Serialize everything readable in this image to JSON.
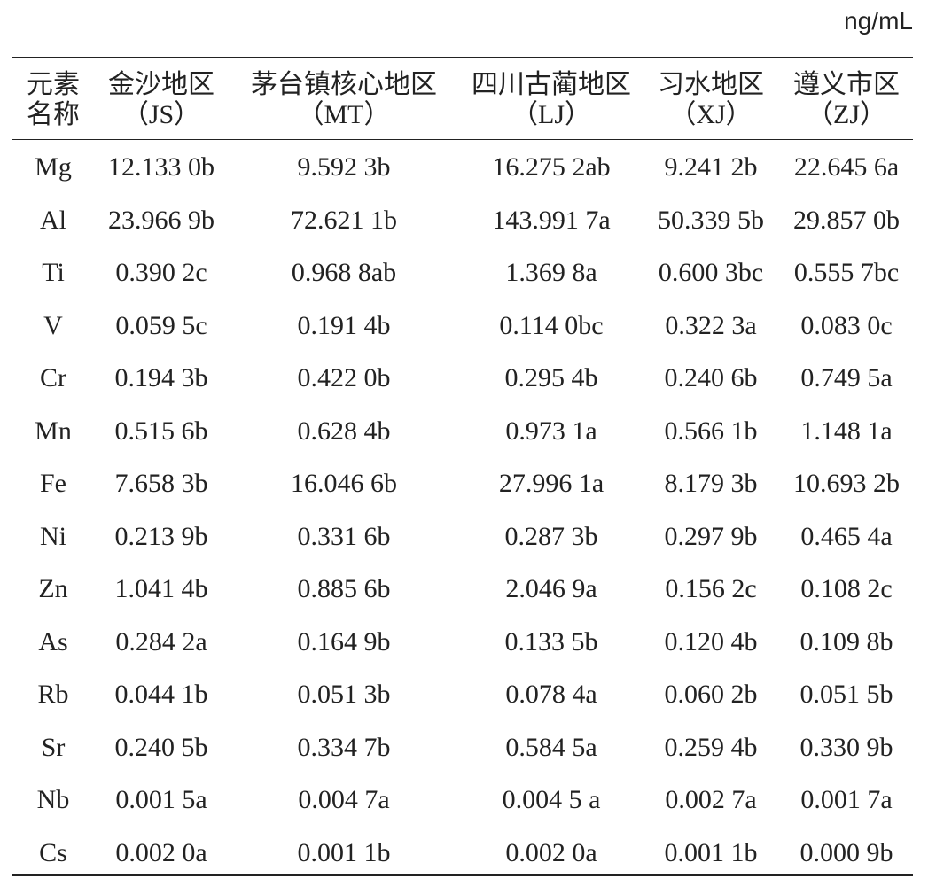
{
  "table": {
    "unit": "ng/mL",
    "header": [
      [
        "元素",
        "名称"
      ],
      [
        "金沙地区",
        "（JS）"
      ],
      [
        "茅台镇核心地区",
        "（MT）"
      ],
      [
        "四川古蔺地区",
        "（LJ）"
      ],
      [
        "习水地区",
        "（XJ）"
      ],
      [
        "遵义市区",
        "（ZJ）"
      ]
    ],
    "rows": [
      [
        "Mg",
        "12.133 0b",
        "9.592 3b",
        "16.275 2ab",
        "9.241 2b",
        "22.645 6a"
      ],
      [
        "Al",
        "23.966 9b",
        "72.621 1b",
        "143.991 7a",
        "50.339 5b",
        "29.857 0b"
      ],
      [
        "Ti",
        "0.390 2c",
        "0.968 8ab",
        "1.369 8a",
        "0.600 3bc",
        "0.555 7bc"
      ],
      [
        "V",
        "0.059 5c",
        "0.191 4b",
        "0.114 0bc",
        "0.322 3a",
        "0.083 0c"
      ],
      [
        "Cr",
        "0.194 3b",
        "0.422 0b",
        "0.295 4b",
        "0.240 6b",
        "0.749 5a"
      ],
      [
        "Mn",
        "0.515 6b",
        "0.628 4b",
        "0.973 1a",
        "0.566 1b",
        "1.148 1a"
      ],
      [
        "Fe",
        "7.658 3b",
        "16.046 6b",
        "27.996 1a",
        "8.179 3b",
        "10.693 2b"
      ],
      [
        "Ni",
        "0.213 9b",
        "0.331 6b",
        "0.287 3b",
        "0.297 9b",
        "0.465 4a"
      ],
      [
        "Zn",
        "1.041 4b",
        "0.885 6b",
        "2.046 9a",
        "0.156 2c",
        "0.108 2c"
      ],
      [
        "As",
        "0.284 2a",
        "0.164 9b",
        "0.133 5b",
        "0.120 4b",
        "0.109 8b"
      ],
      [
        "Rb",
        "0.044 1b",
        "0.051 3b",
        "0.078 4a",
        "0.060 2b",
        "0.051 5b"
      ],
      [
        "Sr",
        "0.240 5b",
        "0.334 7b",
        "0.584 5a",
        "0.259 4b",
        "0.330 9b"
      ],
      [
        "Nb",
        "0.001 5a",
        "0.004 7a",
        "0.004 5 a",
        "0.002 7a",
        "0.001 7a"
      ],
      [
        "Cs",
        "0.002 0a",
        "0.001 1b",
        "0.002 0a",
        "0.001 1b",
        "0.000 9b"
      ]
    ]
  }
}
